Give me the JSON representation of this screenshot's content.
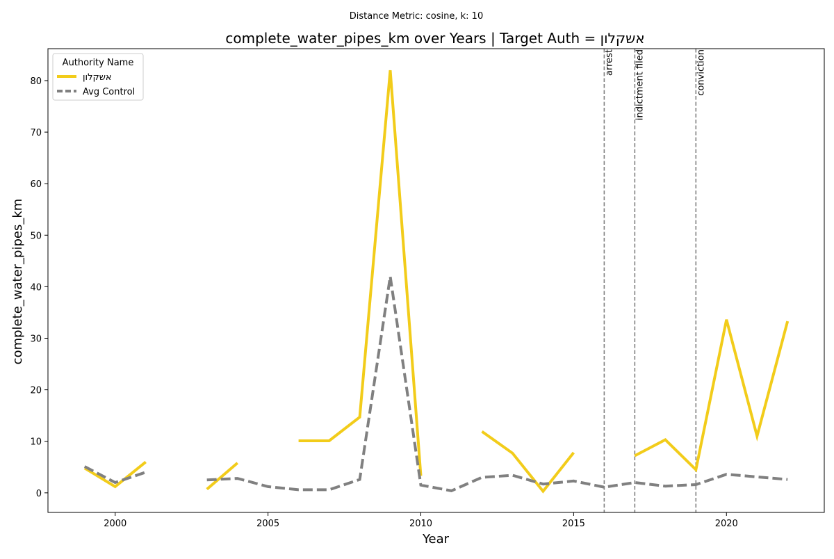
{
  "chart_data": {
    "type": "line",
    "suptitle": "Distance Metric: cosine, k: 10",
    "title": "complete_water_pipes_km over Years | Target Auth = אשקלון",
    "xlabel": "Year",
    "ylabel": "complete_water_pipes_km",
    "xlim": [
      1997.8,
      2023.2
    ],
    "ylim": [
      -3.8,
      86.2
    ],
    "x_ticks": [
      2000,
      2005,
      2010,
      2015,
      2020
    ],
    "y_ticks": [
      0,
      10,
      20,
      30,
      40,
      50,
      60,
      70,
      80
    ],
    "grid": false,
    "legend": {
      "title": "Authority Name",
      "placement": "top-left"
    },
    "series": [
      {
        "name": "אשקלון",
        "color": "#f2cc1a",
        "style": "solid",
        "points": [
          [
            1999,
            4.8
          ],
          [
            2000,
            1.2
          ],
          [
            2001,
            6.0
          ],
          [
            2002,
            null
          ],
          [
            2003,
            0.7
          ],
          [
            2004,
            5.8
          ],
          [
            2005,
            null
          ],
          [
            2006,
            10.1
          ],
          [
            2007,
            10.1
          ],
          [
            2008,
            14.7
          ],
          [
            2009,
            82.0
          ],
          [
            2010,
            3.3
          ],
          [
            2011,
            null
          ],
          [
            2012,
            11.9
          ],
          [
            2013,
            7.7
          ],
          [
            2014,
            0.3
          ],
          [
            2015,
            7.8
          ],
          [
            2016,
            null
          ],
          [
            2017,
            7.2
          ],
          [
            2018,
            10.3
          ],
          [
            2019,
            4.5
          ],
          [
            2020,
            33.6
          ],
          [
            2021,
            11.0
          ],
          [
            2022,
            33.3
          ]
        ]
      },
      {
        "name": "Avg Control",
        "color": "#808080",
        "style": "dashed",
        "points": [
          [
            1999,
            5.1
          ],
          [
            2000,
            2.0
          ],
          [
            2001,
            4.0
          ],
          [
            2002,
            null
          ],
          [
            2003,
            2.5
          ],
          [
            2004,
            2.8
          ],
          [
            2005,
            1.2
          ],
          [
            2006,
            0.6
          ],
          [
            2007,
            0.6
          ],
          [
            2008,
            2.6
          ],
          [
            2009,
            42.0
          ],
          [
            2010,
            1.5
          ],
          [
            2011,
            0.4
          ],
          [
            2012,
            3.0
          ],
          [
            2013,
            3.4
          ],
          [
            2014,
            1.7
          ],
          [
            2015,
            2.3
          ],
          [
            2016,
            1.1
          ],
          [
            2017,
            2.0
          ],
          [
            2018,
            1.3
          ],
          [
            2019,
            1.6
          ],
          [
            2020,
            3.6
          ],
          [
            2021,
            3.1
          ],
          [
            2022,
            2.6
          ]
        ]
      }
    ],
    "events": [
      {
        "x": 2016,
        "label": "arrest"
      },
      {
        "x": 2017,
        "label": "indictment filed"
      },
      {
        "x": 2019,
        "label": "conviction"
      }
    ]
  }
}
